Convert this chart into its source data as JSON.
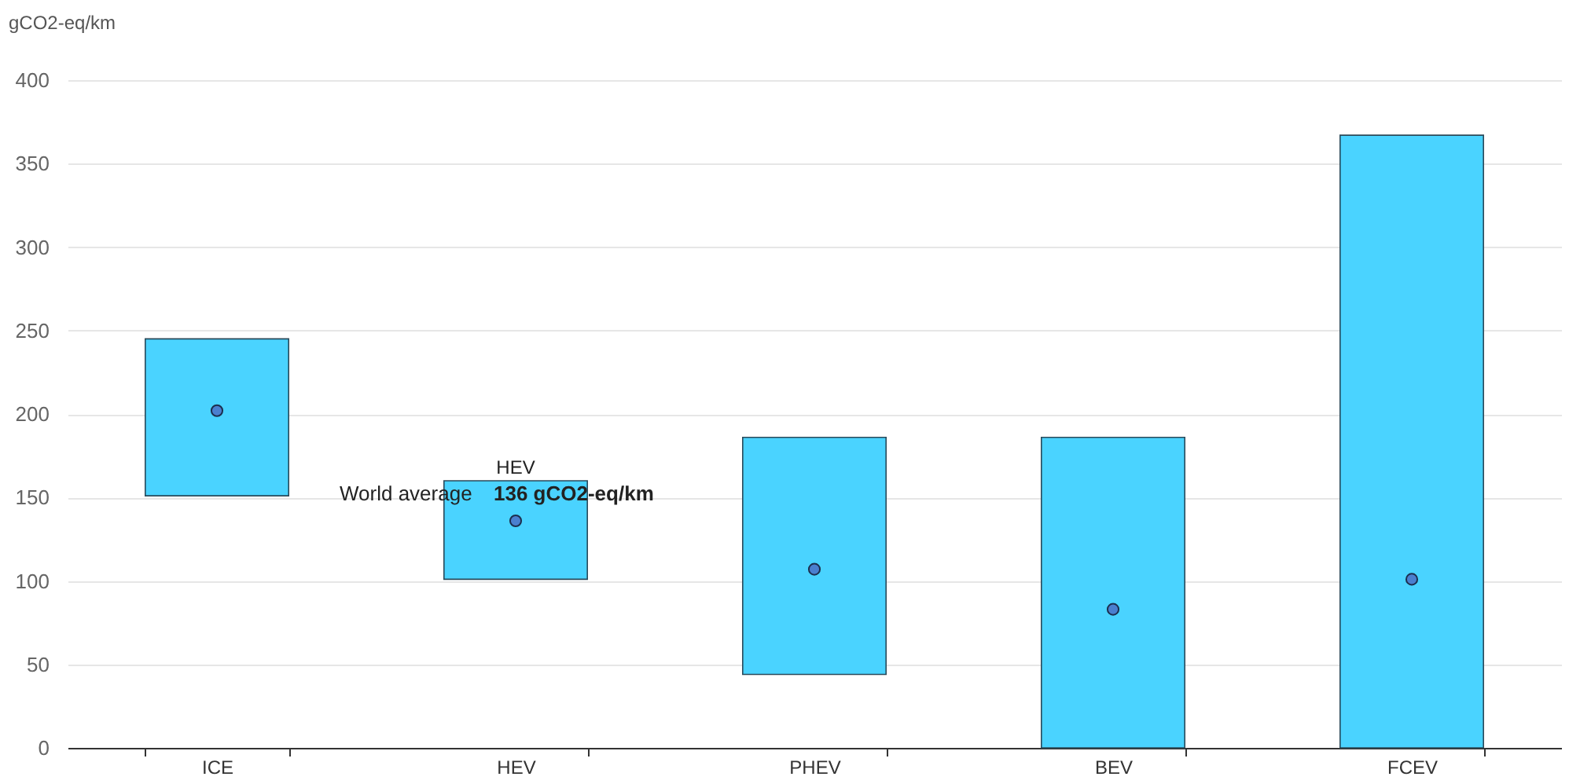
{
  "chart_data": {
    "type": "bar",
    "ylabel": "gCO2-eq/km",
    "categories": [
      "ICE",
      "HEV",
      "PHEV",
      "BEV",
      "FCEV"
    ],
    "series": [
      {
        "color": "#4ad3ff",
        "base": [
          151,
          101,
          44,
          0,
          0
        ],
        "values": [
          94,
          59,
          142,
          186,
          367
        ]
      },
      {
        "type": "scatter",
        "name": "World average",
        "color": "#4a7fcf",
        "marker": "circle",
        "values": [
          202,
          136,
          107,
          83,
          101
        ]
      }
    ],
    "ylim": [
      0,
      400
    ],
    "yticks": [
      0,
      50,
      100,
      150,
      200,
      250,
      300,
      350,
      400
    ],
    "grid": "y",
    "annotations": [
      {
        "text": "HEV",
        "x": "HEV",
        "y": 136
      },
      {
        "text": "136 gCO2-eq/km",
        "x": "HEV",
        "y": 136
      }
    ]
  }
}
